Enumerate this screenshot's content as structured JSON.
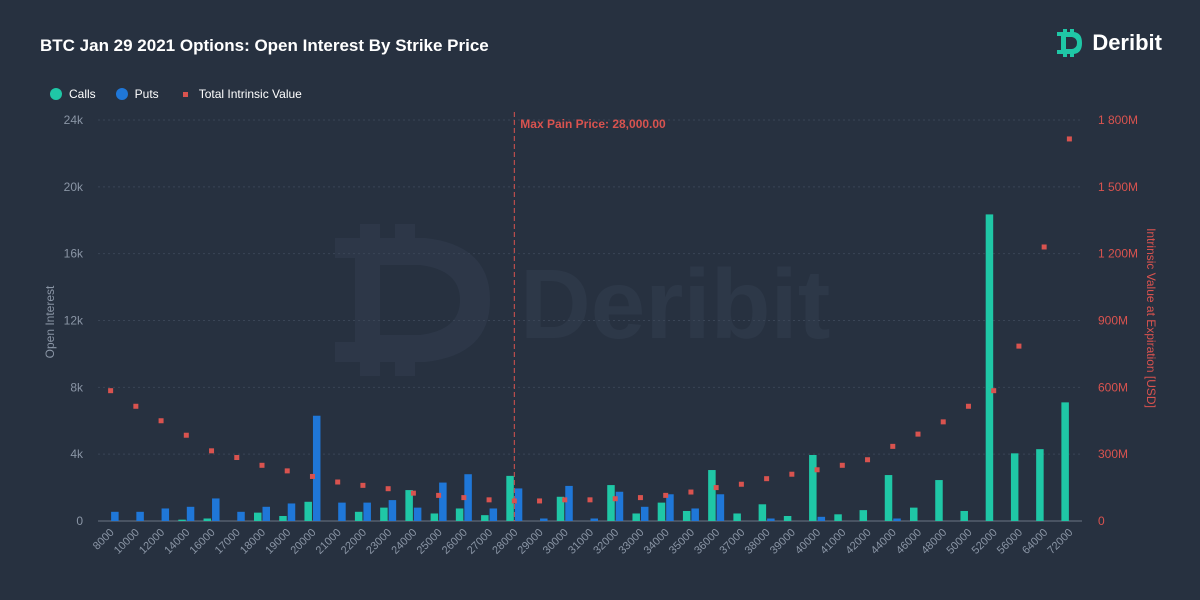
{
  "header": {
    "title": "BTC Jan 29 2021 Options: Open Interest By Strike Price",
    "brand_name": "Deribit",
    "brand_icon": "bitcoin-logo-icon"
  },
  "legend": {
    "calls": "Calls",
    "puts": "Puts",
    "intrinsic": "Total Intrinsic Value"
  },
  "colors": {
    "background": "#273140",
    "calls": "#1fc7a6",
    "puts": "#1f77d8",
    "intrinsic": "#d9534f",
    "axis_text": "#8a95a5",
    "grid": "#3a4556"
  },
  "chart_data": {
    "type": "bar",
    "ylabel": "Open Interest",
    "y2label": "Intrinsic Value at Expiration [USD]",
    "ylim": [
      0,
      24000
    ],
    "y2lim": [
      0,
      1800
    ],
    "yticks": [
      "0",
      "4k",
      "8k",
      "12k",
      "16k",
      "20k",
      "24k"
    ],
    "y2ticks": [
      "0",
      "300M",
      "600M",
      "900M",
      "1 200M",
      "1 500M",
      "1 800M"
    ],
    "max_pain_label": "Max Pain Price: 28,000.00",
    "max_pain_category": "28000",
    "categories": [
      "8000",
      "10000",
      "12000",
      "14000",
      "16000",
      "17000",
      "18000",
      "19000",
      "20000",
      "21000",
      "22000",
      "23000",
      "24000",
      "25000",
      "26000",
      "27000",
      "28000",
      "29000",
      "30000",
      "31000",
      "32000",
      "33000",
      "34000",
      "35000",
      "36000",
      "37000",
      "38000",
      "39000",
      "40000",
      "41000",
      "42000",
      "44000",
      "46000",
      "48000",
      "50000",
      "52000",
      "56000",
      "64000",
      "72000"
    ],
    "series": [
      {
        "name": "Calls",
        "kind": "bar",
        "values": [
          0,
          0,
          0,
          80,
          150,
          0,
          500,
          300,
          1150,
          0,
          550,
          800,
          1850,
          450,
          750,
          350,
          2700,
          0,
          1450,
          0,
          2150,
          450,
          1100,
          600,
          3050,
          450,
          1000,
          300,
          3950,
          400,
          650,
          2750,
          800,
          2450,
          600,
          18350,
          4050,
          4300,
          7100
        ]
      },
      {
        "name": "Puts",
        "kind": "bar",
        "values": [
          550,
          550,
          750,
          850,
          1350,
          550,
          850,
          1050,
          6300,
          1100,
          1100,
          1250,
          800,
          2300,
          2800,
          750,
          1950,
          150,
          2100,
          150,
          1750,
          850,
          1600,
          750,
          1600,
          0,
          150,
          0,
          250,
          0,
          0,
          150,
          0,
          0,
          0,
          0,
          0,
          0,
          0
        ]
      },
      {
        "name": "Total Intrinsic Value",
        "kind": "scatter",
        "unit": "M USD",
        "values": [
          585,
          515,
          450,
          385,
          315,
          285,
          250,
          225,
          200,
          175,
          160,
          145,
          125,
          115,
          105,
          95,
          90,
          90,
          95,
          95,
          100,
          105,
          115,
          130,
          150,
          165,
          190,
          210,
          230,
          250,
          275,
          335,
          390,
          445,
          515,
          585,
          785,
          1230,
          1715
        ]
      }
    ]
  }
}
